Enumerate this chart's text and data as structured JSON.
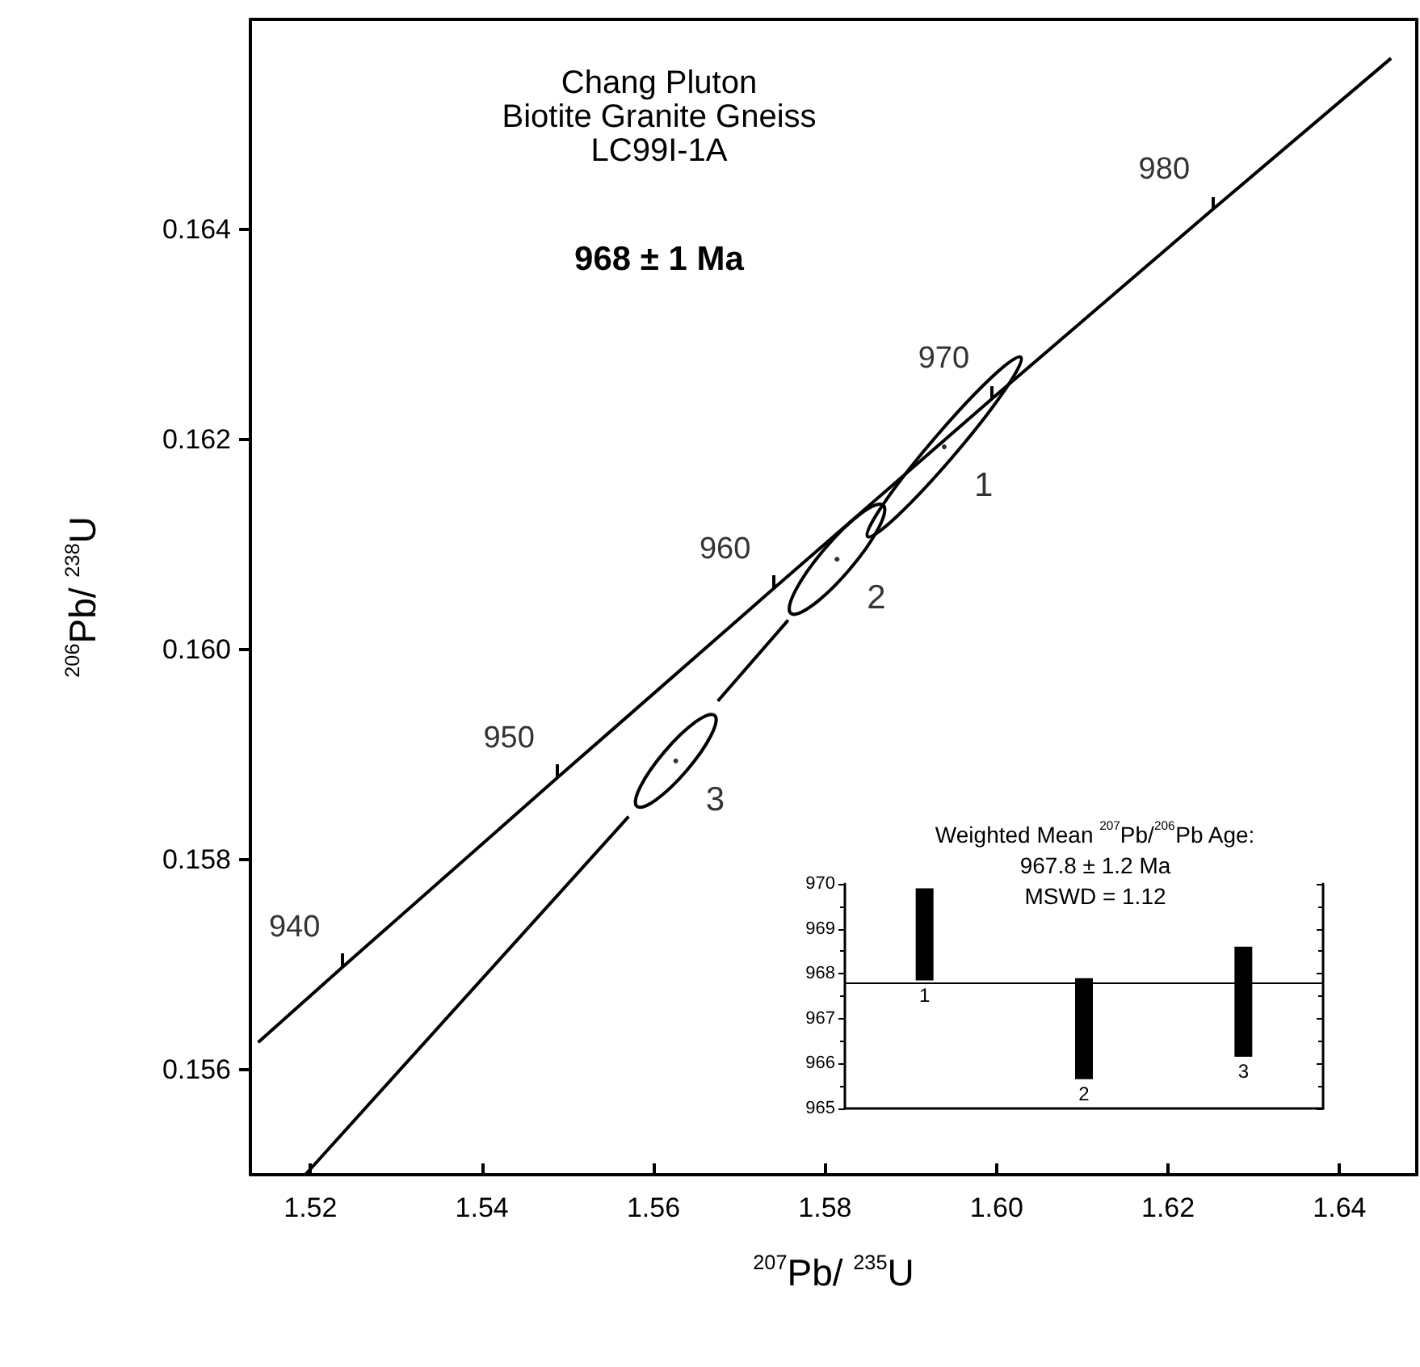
{
  "chart_data": [
    {
      "type": "line",
      "title": "Chang Pluton\nBiotite Granite Gneiss\nLC99I-1A",
      "subtitle": "968 ± 1 Ma",
      "xlabel": "$^{207}$Pb/ $^{235}$U",
      "ylabel": "$^{206}$Pb/ $^{238}$U",
      "xlim": [
        1.513,
        1.649
      ],
      "xticks": [
        1.52,
        1.54,
        1.56,
        1.58,
        {
          "value": 1.6,
          "label": "1.60"
        },
        1.62,
        1.64
      ],
      "ylim": [
        0.155,
        0.166
      ],
      "yticks": [
        0.156,
        0.158,
        {
          "value": 0.16,
          "label": "0.160"
        },
        0.162,
        0.164
      ],
      "series": [
        {
          "type": "line",
          "color": "#000000",
          "x": [
            1.5139,
            1.5238,
            1.5488,
            1.574,
            1.5995,
            1.6252,
            1.646
          ],
          "values": [
            0.15626,
            0.15698,
            0.15878,
            0.16058,
            0.16239,
            0.16419,
            0.16563
          ]
        },
        {
          "type": "line",
          "color": "#000000",
          "x": [
            1.5194,
            1.5571,
            null,
            1.5675,
            1.5757
          ],
          "values": [
            0.155,
            0.15841,
            null,
            0.15951,
            0.16028
          ]
        },
        {
          "type": "scatter",
          "name": "1",
          "color": "#000000",
          "marker": "circle",
          "x": [
            1.5939
          ],
          "values": [
            0.16193
          ]
        },
        {
          "type": "scatter",
          "name": "2",
          "color": "#000000",
          "marker": "circle",
          "x": [
            1.5814
          ],
          "values": [
            0.16086
          ]
        },
        {
          "type": "scatter",
          "name": "3",
          "color": "#000000",
          "marker": "circle",
          "x": [
            1.5626
          ],
          "values": [
            0.15894
          ]
        }
      ],
      "annotations": [
        {
          "text": "940",
          "x": 1.5238,
          "y": 0.15698
        },
        {
          "text": "950",
          "x": 1.5488,
          "y": 0.15878
        },
        {
          "text": "960",
          "x": 1.574,
          "y": 0.16058
        },
        {
          "text": "970",
          "x": 1.5995,
          "y": 0.16239
        },
        {
          "text": "980",
          "x": 1.6252,
          "y": 0.16419
        }
      ]
    },
    {
      "type": "bar",
      "title": "Weighted Mean $^{207}$Pb/$^{206}$Pb Age:\n967.8 ± 1.2 Ma\nMSWD = 1.12",
      "categories": [
        "1",
        "2",
        "3"
      ],
      "base": [
        967.85,
        965.65,
        966.15
      ],
      "values": [
        2.05,
        2.25,
        2.45
      ],
      "color": "#000000",
      "ylim": [
        965,
        970
      ],
      "yticks": [
        965,
        966,
        967,
        968,
        969,
        970
      ],
      "ref_lines": [
        {
          "axis": "y",
          "value": 967.8
        }
      ]
    }
  ]
}
